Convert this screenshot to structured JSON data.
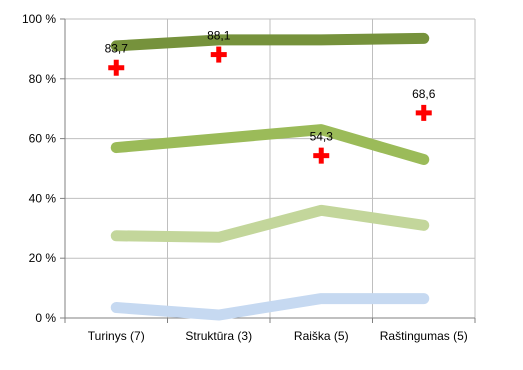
{
  "chart_data": {
    "type": "line",
    "categories": [
      "Turinys (7)",
      "Struktūra (3)",
      "Raiška (5)",
      "Raštingumas (5)"
    ],
    "y_ticks": [
      "0 %",
      "20 %",
      "40 %",
      "60 %",
      "80 %",
      "100 %"
    ],
    "ylim": [
      0,
      100
    ],
    "grid": true,
    "legend": "none",
    "series": [
      {
        "values": [
          3.5,
          1,
          6.5,
          6.5
        ],
        "color": "#c6d9f1"
      },
      {
        "values": [
          27.5,
          27,
          36,
          31
        ],
        "color": "#c3d69b"
      },
      {
        "values": [
          57,
          60,
          63,
          53
        ],
        "color": "#9bbb59"
      },
      {
        "values": [
          91,
          93,
          93,
          93.5
        ],
        "color": "#76923c"
      }
    ],
    "markers": {
      "symbol": "✚",
      "color": "#ff0000",
      "values": [
        83.7,
        88.1,
        54.3,
        68.6
      ],
      "labels": [
        "83,7",
        "88,1",
        "54,3",
        "68,6"
      ]
    }
  }
}
